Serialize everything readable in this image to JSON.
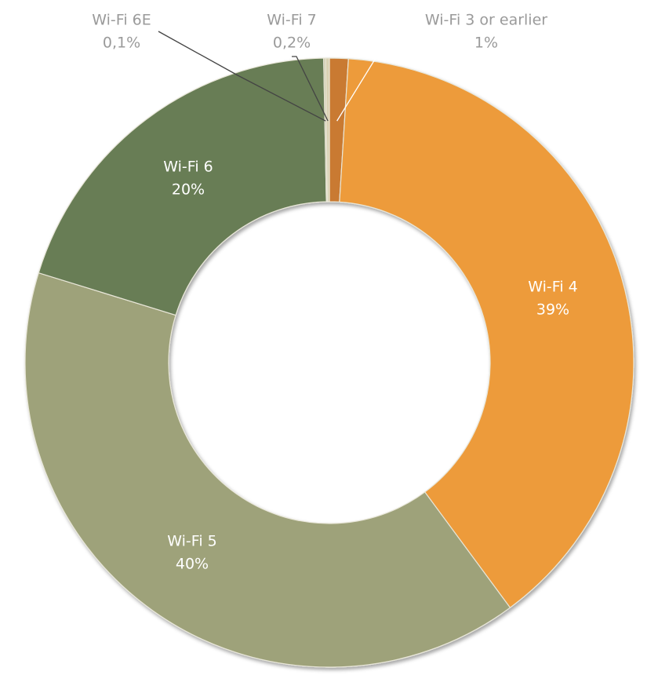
{
  "chart_data": {
    "type": "donut",
    "categories": [
      "Wi-Fi 3 or earlier",
      "Wi-Fi 4",
      "Wi-Fi 5",
      "Wi-Fi 6",
      "Wi-Fi 6E",
      "Wi-Fi 7"
    ],
    "values": [
      1,
      39,
      40,
      20,
      0.1,
      0.2
    ],
    "value_labels": [
      "1%",
      "39%",
      "40%",
      "20%",
      "0,1%",
      "0,2%"
    ],
    "colors": [
      "#c97a30",
      "#ed9b3a",
      "#9ea27a",
      "#687d55",
      "#c9c4a0",
      "#d9d1b2"
    ]
  }
}
